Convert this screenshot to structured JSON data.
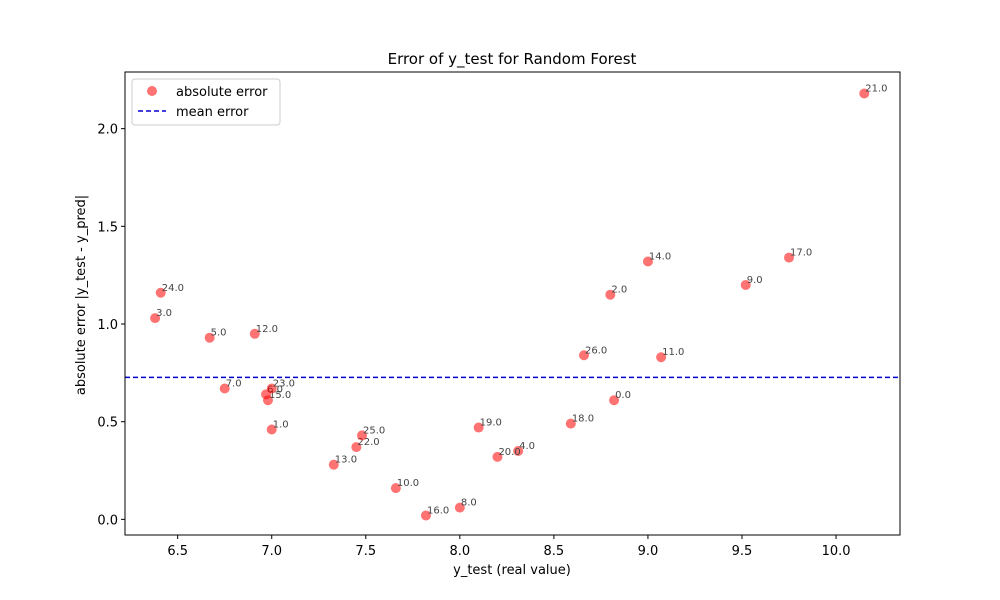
{
  "chart_data": {
    "type": "scatter",
    "title": "Error of y_test for Random Forest",
    "xlabel": "y_test (real value)",
    "ylabel": "absolute error |y_test - y_pred|",
    "xlim": [
      6.22,
      10.34
    ],
    "ylim": [
      -0.08,
      2.29
    ],
    "xticks": [
      6.5,
      7.0,
      7.5,
      8.0,
      8.5,
      9.0,
      9.5,
      10.0
    ],
    "yticks": [
      0.0,
      0.5,
      1.0,
      1.5,
      2.0
    ],
    "series": [
      {
        "name": "absolute error",
        "color": "#ff0000",
        "points": [
          {
            "x": 8.82,
            "y": 0.61,
            "label": "0.0"
          },
          {
            "x": 7.0,
            "y": 0.46,
            "label": "1.0"
          },
          {
            "x": 8.8,
            "y": 1.15,
            "label": "2.0"
          },
          {
            "x": 6.38,
            "y": 1.03,
            "label": "3.0"
          },
          {
            "x": 8.31,
            "y": 0.35,
            "label": "4.0"
          },
          {
            "x": 6.67,
            "y": 0.93,
            "label": "5.0"
          },
          {
            "x": 6.97,
            "y": 0.64,
            "label": "6.0"
          },
          {
            "x": 6.75,
            "y": 0.67,
            "label": "7.0"
          },
          {
            "x": 8.0,
            "y": 0.06,
            "label": "8.0"
          },
          {
            "x": 9.52,
            "y": 1.2,
            "label": "9.0"
          },
          {
            "x": 7.66,
            "y": 0.16,
            "label": "10.0"
          },
          {
            "x": 9.07,
            "y": 0.83,
            "label": "11.0"
          },
          {
            "x": 6.91,
            "y": 0.95,
            "label": "12.0"
          },
          {
            "x": 7.33,
            "y": 0.28,
            "label": "13.0"
          },
          {
            "x": 9.0,
            "y": 1.32,
            "label": "14.0"
          },
          {
            "x": 6.98,
            "y": 0.61,
            "label": "15.0"
          },
          {
            "x": 7.82,
            "y": 0.02,
            "label": "16.0"
          },
          {
            "x": 9.75,
            "y": 1.34,
            "label": "17.0"
          },
          {
            "x": 8.59,
            "y": 0.49,
            "label": "18.0"
          },
          {
            "x": 8.1,
            "y": 0.47,
            "label": "19.0"
          },
          {
            "x": 8.2,
            "y": 0.32,
            "label": "20.0"
          },
          {
            "x": 10.15,
            "y": 2.18,
            "label": "21.0"
          },
          {
            "x": 7.45,
            "y": 0.37,
            "label": "22.0"
          },
          {
            "x": 7.0,
            "y": 0.67,
            "label": "23.0"
          },
          {
            "x": 6.41,
            "y": 1.16,
            "label": "24.0"
          },
          {
            "x": 7.48,
            "y": 0.43,
            "label": "25.0"
          },
          {
            "x": 8.66,
            "y": 0.84,
            "label": "26.0"
          }
        ]
      }
    ],
    "mean_error": {
      "name": "mean error",
      "value": 0.727,
      "color": "#0000cc"
    },
    "legend": {
      "location": "top-left",
      "entries": [
        "absolute error",
        "mean error"
      ]
    },
    "grid": false
  }
}
